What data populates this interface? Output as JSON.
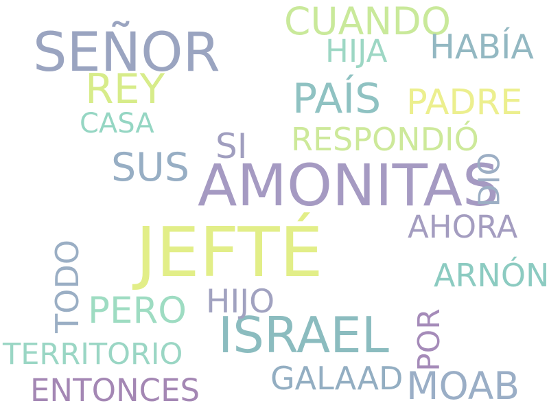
{
  "words": [
    {
      "text": "JEFTÉ",
      "color": "#e2ee88"
    },
    {
      "text": "AMONITAS",
      "color": "#a59ac2"
    },
    {
      "text": "ISRAEL",
      "color": "#8bbcbf"
    },
    {
      "text": "SEÑOR",
      "color": "#9aa4c0"
    },
    {
      "text": "REY",
      "color": "#d7ec8a"
    },
    {
      "text": "CUANDO",
      "color": "#c9e99a"
    },
    {
      "text": "HIJA",
      "color": "#9dd7c4"
    },
    {
      "text": "HABÍA",
      "color": "#93b8c2"
    },
    {
      "text": "PAÍS",
      "color": "#8fc2c2"
    },
    {
      "text": "PADRE",
      "color": "#ecef8e"
    },
    {
      "text": "CASA",
      "color": "#95d6c3"
    },
    {
      "text": "SI",
      "color": "#a09ebf"
    },
    {
      "text": "RESPONDIÓ",
      "color": "#cde99a"
    },
    {
      "text": "SUS",
      "color": "#97aec4"
    },
    {
      "text": "DIO",
      "color": "#9caec4"
    },
    {
      "text": "AHORA",
      "color": "#a49dc0"
    },
    {
      "text": "TODO",
      "color": "#9aaec4"
    },
    {
      "text": "ARNÓN",
      "color": "#8ccbc1"
    },
    {
      "text": "PERO",
      "color": "#9edcc2"
    },
    {
      "text": "HIJO",
      "color": "#a1a2c0"
    },
    {
      "text": "POR",
      "color": "#a58bb9"
    },
    {
      "text": "TERRITORIO",
      "color": "#9ad6c4"
    },
    {
      "text": "GALAAD",
      "color": "#93aec2"
    },
    {
      "text": "MOAB",
      "color": "#9aaec6"
    },
    {
      "text": "ENTONCES",
      "color": "#a487b4"
    }
  ]
}
